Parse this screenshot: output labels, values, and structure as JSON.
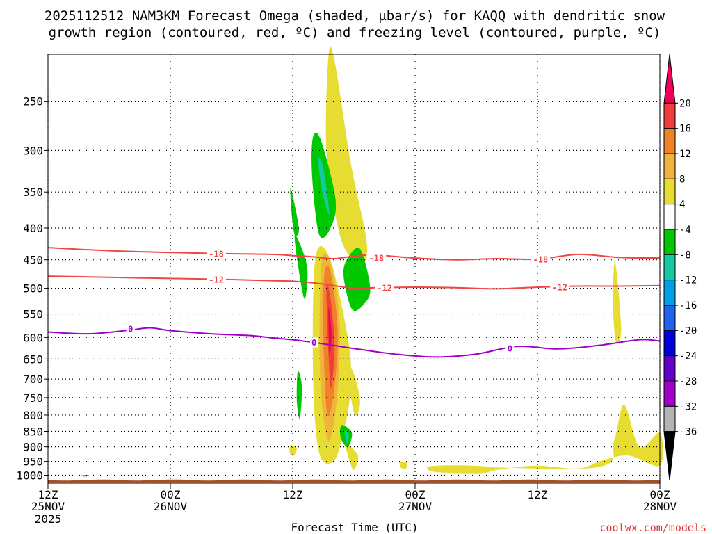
{
  "chart_data": {
    "type": "heatmap",
    "title_line1": "2025112512 NAM3KM Forecast Omega (shaded, µbar/s) for KAQQ with dendritic snow",
    "title_line2": "growth region (contoured, red, ºC) and freezing level (contoured, purple, ºC)",
    "xlabel": "Forecast Time (UTC)",
    "ylabel": "",
    "y_axis": {
      "units": "hPa",
      "range": [
        1030,
        210
      ],
      "scale": "log",
      "ticks": [
        250,
        300,
        350,
        400,
        450,
        500,
        550,
        600,
        650,
        700,
        750,
        800,
        850,
        900,
        950,
        1000
      ],
      "tick_labels": [
        "250",
        "300",
        "350",
        "400",
        "450",
        "500",
        "550",
        "600",
        "650",
        "700",
        "750",
        "800",
        "850",
        "900",
        "950",
        "1000"
      ]
    },
    "x_axis": {
      "units": "forecast hour",
      "range": [
        0,
        60
      ],
      "ticks": [
        {
          "hour": 0,
          "top": "12Z",
          "mid": "25NOV",
          "bot": "2025"
        },
        {
          "hour": 12,
          "top": "00Z",
          "mid": "26NOV",
          "bot": ""
        },
        {
          "hour": 24,
          "top": "12Z",
          "mid": "",
          "bot": ""
        },
        {
          "hour": 36,
          "top": "00Z",
          "mid": "27NOV",
          "bot": ""
        },
        {
          "hour": 48,
          "top": "12Z",
          "mid": "",
          "bot": ""
        },
        {
          "hour": 60,
          "top": "00Z",
          "mid": "28NOV",
          "bot": ""
        }
      ]
    },
    "colorbar": {
      "units": "µbar/s",
      "levels": [
        20,
        16,
        12,
        8,
        4,
        -4,
        -8,
        -12,
        -16,
        -20,
        -24,
        -28,
        -32,
        -36
      ],
      "colors": [
        "#f0005a",
        "#f03c3c",
        "#f08228",
        "#f0b43c",
        "#e6dc32",
        "#ffffff",
        "#00c800",
        "#14c8a0",
        "#00a0e6",
        "#1e64f0",
        "#0000dc",
        "#6400c8",
        "#a000c8",
        "#b4b4b4",
        "#000000"
      ]
    },
    "series": [
      {
        "name": "-18C isotherm",
        "color": "#f04646",
        "label": "-18",
        "x": [
          0,
          6,
          12,
          18,
          22,
          24,
          26,
          28,
          30,
          32,
          36,
          40,
          44,
          48,
          52,
          56,
          60
        ],
        "y": [
          430,
          435,
          438,
          440,
          441,
          443,
          445,
          448,
          444,
          442,
          447,
          450,
          448,
          449,
          441,
          446,
          447
        ]
      },
      {
        "name": "-12C isotherm",
        "color": "#f04646",
        "label": "-12",
        "x": [
          0,
          6,
          12,
          18,
          22,
          24,
          26,
          28,
          30,
          32,
          36,
          40,
          44,
          48,
          52,
          56,
          60
        ],
        "y": [
          478,
          480,
          482,
          484,
          486,
          487,
          490,
          495,
          500,
          499,
          498,
          499,
          501,
          498,
          496,
          496,
          495
        ]
      },
      {
        "name": "0C freezing level",
        "color": "#a000c8",
        "label": "0",
        "x": [
          0,
          4,
          8,
          10,
          12,
          16,
          20,
          22,
          24,
          26,
          28,
          30,
          34,
          38,
          42,
          46,
          50,
          54,
          58,
          60
        ],
        "y": [
          588,
          592,
          584,
          579,
          585,
          592,
          596,
          601,
          605,
          611,
          618,
          625,
          638,
          645,
          638,
          620,
          626,
          618,
          605,
          608
        ]
      }
    ],
    "shaded_regions": [
      {
        "level": 4,
        "color": "#e6dc32",
        "x": [
          27.5,
          28.1,
          29.7,
          31.2,
          31.0,
          29.4,
          28.3,
          27.3
        ],
        "y": [
          212,
          215,
          315,
          415,
          455,
          440,
          390,
          300
        ]
      },
      {
        "level": 4,
        "color": "#e6dc32",
        "x": [
          26.2,
          27.6,
          29.4,
          29.7,
          29.0,
          28.0,
          26.6,
          26.0
        ],
        "y": [
          450,
          446,
          600,
          720,
          850,
          950,
          920,
          700
        ]
      },
      {
        "level": 4,
        "color": "#e6dc32",
        "x": [
          28.6,
          29.9,
          30.6,
          30.1,
          29.5,
          29.1
        ],
        "y": [
          630,
          680,
          760,
          800,
          720,
          690
        ]
      },
      {
        "level": 4,
        "color": "#e6dc32",
        "x": [
          29.2,
          30.4,
          30.0,
          29.6
        ],
        "y": [
          890,
          930,
          980,
          950
        ]
      },
      {
        "level": 4,
        "color": "#e6dc32",
        "x": [
          55.6,
          56.2,
          55.7,
          55.4
        ],
        "y": [
          452,
          580,
          612,
          530
        ]
      },
      {
        "level": 4,
        "color": "#e6dc32",
        "x": [
          54.0,
          55.5,
          56.5,
          58.0,
          60.0,
          60.0,
          57.0,
          54.5,
          52.0,
          48.0,
          45.0,
          43.0,
          41.0,
          41.5
        ],
        "y": [
          970,
          880,
          770,
          900,
          855,
          965,
          930,
          945,
          975,
          965,
          975,
          985,
          980,
          970
        ]
      },
      {
        "level": 4,
        "color": "#e6dc32",
        "x": [
          37.4,
          40.0,
          43.2,
          43.0,
          40.0,
          37.6
        ],
        "y": [
          968,
          964,
          970,
          990,
          992,
          985
        ]
      },
      {
        "level": 4,
        "color": "#e6dc32",
        "x": [
          34.5,
          35.2,
          35.1,
          34.6
        ],
        "y": [
          952,
          955,
          975,
          972
        ]
      },
      {
        "level": 4,
        "color": "#e6dc32",
        "x": [
          23.8,
          24.4,
          24.1,
          23.7
        ],
        "y": [
          895,
          905,
          930,
          920
        ]
      },
      {
        "level": 8,
        "color": "#f0b43c",
        "x": [
          26.8,
          27.7,
          28.6,
          28.3,
          27.5,
          26.7
        ],
        "y": [
          460,
          455,
          570,
          760,
          880,
          700
        ]
      },
      {
        "level": 12,
        "color": "#f08228",
        "x": [
          27.1,
          27.7,
          28.4,
          28.1,
          27.4,
          27.0
        ],
        "y": [
          475,
          470,
          580,
          720,
          800,
          600
        ]
      },
      {
        "level": 16,
        "color": "#f03c3c",
        "x": [
          27.3,
          27.7,
          28.1,
          27.7
        ],
        "y": [
          500,
          520,
          620,
          720
        ]
      },
      {
        "level": 20,
        "color": "#f0005a",
        "x": [
          27.5,
          27.7,
          27.8,
          27.6
        ],
        "y": [
          540,
          560,
          600,
          640
        ]
      },
      {
        "level": -4,
        "color": "#00c800",
        "x": [
          26.0,
          26.8,
          28.2,
          27.7,
          26.6,
          25.9
        ],
        "y": [
          285,
          290,
          360,
          400,
          410,
          330
        ]
      },
      {
        "level": -8,
        "color": "#14c8a0",
        "x": [
          26.5,
          27.0,
          27.6,
          26.9
        ],
        "y": [
          310,
          320,
          380,
          350
        ]
      },
      {
        "level": -4,
        "color": "#00c800",
        "x": [
          23.8,
          24.6,
          24.2,
          23.9
        ],
        "y": [
          345,
          400,
          410,
          380
        ]
      },
      {
        "level": -4,
        "color": "#00c800",
        "x": [
          24.2,
          25.4,
          25.2,
          24.7
        ],
        "y": [
          410,
          460,
          520,
          480
        ]
      },
      {
        "level": -4,
        "color": "#00c800",
        "x": [
          24.5,
          24.9,
          24.7,
          24.4
        ],
        "y": [
          680,
          720,
          810,
          760
        ]
      },
      {
        "level": -4,
        "color": "#00c800",
        "x": [
          29.3,
          30.6,
          31.6,
          30.9,
          29.8,
          29.0
        ],
        "y": [
          450,
          432,
          500,
          532,
          540,
          480
        ]
      },
      {
        "level": -4,
        "color": "#00c800",
        "x": [
          28.8,
          29.8,
          29.4,
          28.7
        ],
        "y": [
          830,
          855,
          900,
          870
        ]
      },
      {
        "level": -8,
        "color": "#14c8a0",
        "x": [
          29.1,
          29.5,
          29.3
        ],
        "y": [
          850,
          860,
          890
        ]
      },
      {
        "level": -4,
        "color": "#00c800",
        "x": [
          3.3,
          4.0,
          3.6
        ],
        "y": [
          1000,
          1000,
          1005
        ]
      }
    ],
    "contour_labels": [
      {
        "text": "-18",
        "x": 16.5,
        "y": 440
      },
      {
        "text": "-18",
        "x": 32.2,
        "y": 447
      },
      {
        "text": "-18",
        "x": 48.3,
        "y": 449
      },
      {
        "text": "-12",
        "x": 16.5,
        "y": 484
      },
      {
        "text": "-12",
        "x": 33.0,
        "y": 499
      },
      {
        "text": "-12",
        "x": 50.2,
        "y": 498
      },
      {
        "text": "0",
        "x": 8.1,
        "y": 581
      },
      {
        "text": "0",
        "x": 26.1,
        "y": 611
      },
      {
        "text": "0",
        "x": 45.3,
        "y": 625
      }
    ],
    "surface": {
      "label": "terrain",
      "color": "#a0522d",
      "top_hpa": 1018
    }
  },
  "credit": "coolwx.com/models"
}
